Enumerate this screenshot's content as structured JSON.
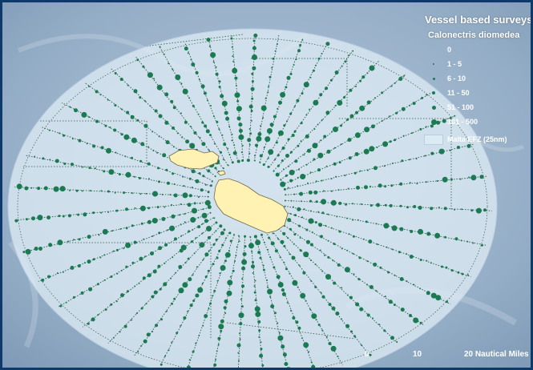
{
  "legend": {
    "title": "Vessel based surveys",
    "species": "Calonectris diomedea",
    "classes": [
      {
        "label": "0",
        "size": 0
      },
      {
        "label": "1 - 5",
        "size": 2
      },
      {
        "label": "6 - 10",
        "size": 3
      },
      {
        "label": "11 - 50",
        "size": 4
      },
      {
        "label": "51 - 100",
        "size": 5
      },
      {
        "label": "101 - 500",
        "size": 7
      }
    ],
    "eez_label": "Malta EFZ (25nm)"
  },
  "scale_bar": {
    "ticks": [
      "0",
      "10",
      "20 Nautical Miles"
    ]
  },
  "colors": {
    "sea": "#8fa9c4",
    "eez": "#dceaf4",
    "land": "#fff2b3",
    "points": "#1a7a52",
    "border": "#0d3a6b"
  }
}
